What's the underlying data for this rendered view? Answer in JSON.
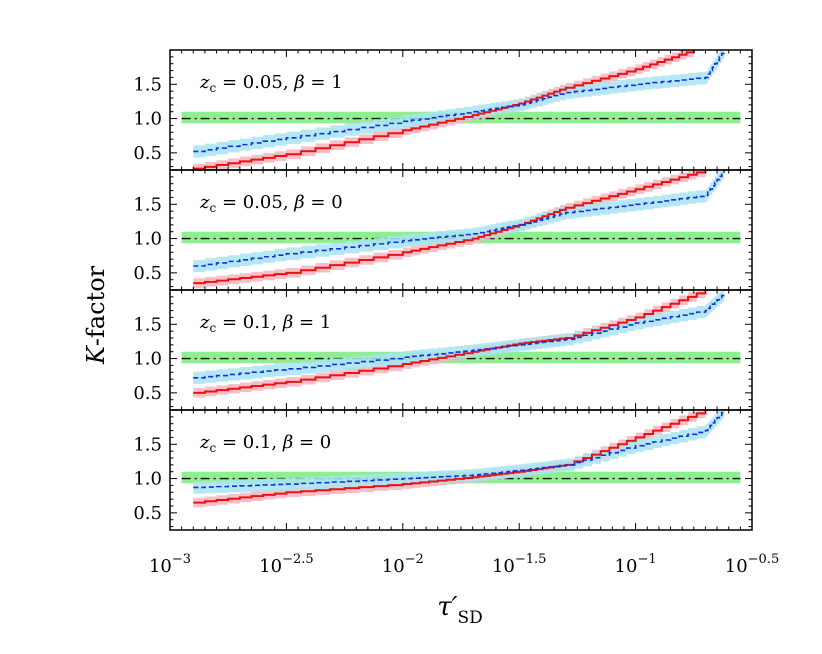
{
  "figure": {
    "ylabel_italic": "K",
    "ylabel_rest": "-factor",
    "xlabel_main": "τ′",
    "xlabel_sub": "SD"
  },
  "x_ticks": [
    {
      "value": -3.0,
      "base": "10",
      "exp": "−3"
    },
    {
      "value": -2.5,
      "base": "10",
      "exp": "−2.5"
    },
    {
      "value": -2.0,
      "base": "10",
      "exp": "−2"
    },
    {
      "value": -1.5,
      "base": "10",
      "exp": "−1.5"
    },
    {
      "value": -1.0,
      "base": "10",
      "exp": "−1"
    },
    {
      "value": -0.5,
      "base": "10",
      "exp": "−0.5"
    }
  ],
  "y_ticks": [
    "0.5",
    "1.0",
    "1.5"
  ],
  "colors": {
    "red": "#ee1111",
    "red_band": "#f5b5c2",
    "blue": "#1133dd",
    "blue_band": "#a8e4f2",
    "green_band": "#90ee90",
    "ref_line": "#111111"
  },
  "chart_data": [
    {
      "type": "line",
      "panel_label": {
        "zc_symbol": "z",
        "zc_sub": "c",
        "zc_value": " = 0.05, ",
        "beta_symbol": "β",
        "beta_value": " = 1"
      },
      "x_scale": "log10",
      "xlim": [
        -3.0,
        -0.5
      ],
      "ylim": [
        0.25,
        2.0
      ],
      "reference": {
        "y": 1.0,
        "band": [
          0.93,
          1.1
        ]
      },
      "series": [
        {
          "color": "red",
          "x": [
            -2.9,
            -2.5,
            -2.0,
            -1.7,
            -1.5,
            -1.3,
            -1.0,
            -0.75
          ],
          "y": [
            0.27,
            0.48,
            0.83,
            1.05,
            1.22,
            1.45,
            1.72,
            2.0
          ]
        },
        {
          "color": "blue",
          "x": [
            -2.9,
            -2.5,
            -2.0,
            -1.7,
            -1.5,
            -1.3,
            -1.0,
            -0.7,
            -0.62
          ],
          "y": [
            0.52,
            0.72,
            0.96,
            1.1,
            1.2,
            1.38,
            1.5,
            1.6,
            2.0
          ]
        }
      ]
    },
    {
      "type": "line",
      "panel_label": {
        "zc_symbol": "z",
        "zc_sub": "c",
        "zc_value": " = 0.05, ",
        "beta_symbol": "β",
        "beta_value": " = 0"
      },
      "x_scale": "log10",
      "xlim": [
        -3.0,
        -0.5
      ],
      "ylim": [
        0.25,
        2.0
      ],
      "reference": {
        "y": 1.0,
        "band": [
          0.93,
          1.1
        ]
      },
      "series": [
        {
          "color": "red",
          "x": [
            -2.9,
            -2.5,
            -2.0,
            -1.7,
            -1.5,
            -1.3,
            -1.0,
            -0.7
          ],
          "y": [
            0.35,
            0.5,
            0.8,
            1.0,
            1.2,
            1.45,
            1.72,
            2.0
          ]
        },
        {
          "color": "blue",
          "x": [
            -2.9,
            -2.5,
            -2.0,
            -1.7,
            -1.5,
            -1.3,
            -1.0,
            -0.7,
            -0.62
          ],
          "y": [
            0.6,
            0.78,
            0.97,
            1.07,
            1.2,
            1.38,
            1.5,
            1.63,
            2.0
          ]
        }
      ]
    },
    {
      "type": "line",
      "panel_label": {
        "zc_symbol": "z",
        "zc_sub": "c",
        "zc_value": " = 0.1, ",
        "beta_symbol": "β",
        "beta_value": " = 1"
      },
      "x_scale": "log10",
      "xlim": [
        -3.0,
        -0.5
      ],
      "ylim": [
        0.25,
        2.0
      ],
      "reference": {
        "y": 1.0,
        "band": [
          0.93,
          1.1
        ]
      },
      "series": [
        {
          "color": "red",
          "x": [
            -2.9,
            -2.5,
            -2.0,
            -1.7,
            -1.5,
            -1.3,
            -1.0,
            -0.7
          ],
          "y": [
            0.5,
            0.66,
            0.92,
            1.1,
            1.22,
            1.3,
            1.6,
            2.0
          ]
        },
        {
          "color": "blue",
          "x": [
            -2.9,
            -2.5,
            -2.0,
            -1.7,
            -1.5,
            -1.3,
            -1.0,
            -0.7,
            -0.62
          ],
          "y": [
            0.72,
            0.85,
            1.02,
            1.12,
            1.2,
            1.28,
            1.52,
            1.7,
            1.95
          ]
        }
      ]
    },
    {
      "type": "line",
      "panel_label": {
        "zc_symbol": "z",
        "zc_sub": "c",
        "zc_value": " = 0.1, ",
        "beta_symbol": "β",
        "beta_value": " = 0"
      },
      "x_scale": "log10",
      "xlim": [
        -3.0,
        -0.5
      ],
      "ylim": [
        0.25,
        2.0
      ],
      "reference": {
        "y": 1.0,
        "band": [
          0.93,
          1.1
        ]
      },
      "series": [
        {
          "color": "red",
          "x": [
            -2.9,
            -2.5,
            -2.0,
            -1.7,
            -1.5,
            -1.3,
            -1.0,
            -0.7
          ],
          "y": [
            0.65,
            0.8,
            0.92,
            1.02,
            1.1,
            1.2,
            1.6,
            2.0
          ]
        },
        {
          "color": "blue",
          "x": [
            -2.9,
            -2.5,
            -2.0,
            -1.7,
            -1.5,
            -1.3,
            -1.0,
            -0.7,
            -0.62
          ],
          "y": [
            0.87,
            0.92,
            1.0,
            1.05,
            1.12,
            1.2,
            1.48,
            1.7,
            2.0
          ]
        }
      ]
    }
  ]
}
